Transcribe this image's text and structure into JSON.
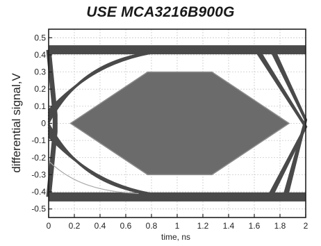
{
  "chart_data": {
    "type": "line",
    "title": "USE MCA3216B900G",
    "xlabel": "time, ns",
    "ylabel": "differential signal,V",
    "xlim": [
      0,
      2
    ],
    "ylim": [
      -0.55,
      0.55
    ],
    "x_ticks": [
      "0",
      "0.2",
      "0.4",
      "0.6",
      "0.8",
      "1",
      "1.2",
      "1.4",
      "1.6",
      "1.8",
      "2"
    ],
    "x_tick_values": [
      0,
      0.2,
      0.4,
      0.6,
      0.8,
      1,
      1.2,
      1.4,
      1.6,
      1.8,
      2
    ],
    "y_ticks": [
      "0.5",
      "0.4",
      "0.3",
      "0.2",
      "0.1",
      "0",
      "-0.1",
      "-0.2",
      "-0.3",
      "-0.4",
      "-0.5"
    ],
    "y_tick_values": [
      0.5,
      0.4,
      0.3,
      0.2,
      0.1,
      0,
      -0.1,
      -0.2,
      -0.3,
      -0.4,
      -0.5
    ],
    "grid": true,
    "eye_levels": {
      "high": 0.43,
      "low": -0.43
    },
    "eye_mask": [
      [
        0.17,
        0
      ],
      [
        0.77,
        0.3
      ],
      [
        1.27,
        0.3
      ],
      [
        1.87,
        0
      ],
      [
        1.27,
        -0.3
      ],
      [
        0.77,
        -0.3
      ]
    ],
    "colors": {
      "trace": "#4a4a4a",
      "mask_fill": "#6b6b6b",
      "mask_stroke": "#8e8e8e",
      "grid": "#c8c8c8",
      "axis": "#1f1f1f",
      "stray_trace": "#a9a9a9"
    }
  }
}
